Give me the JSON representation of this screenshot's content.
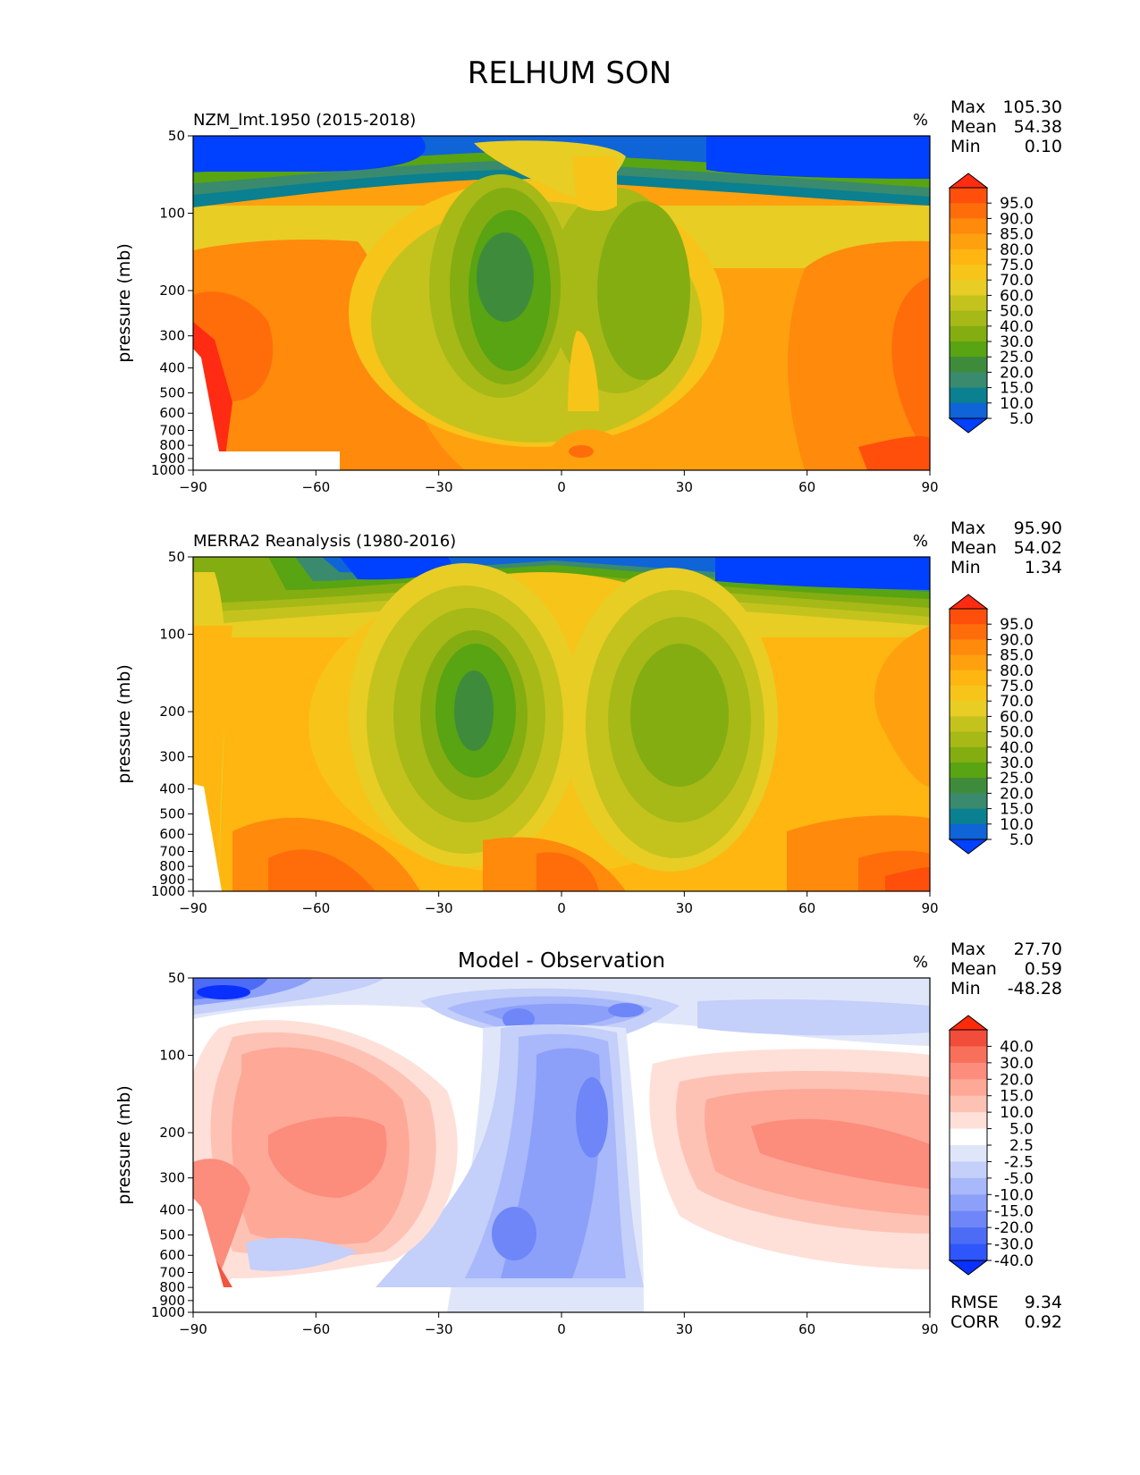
{
  "figure_title": "RELHUM SON",
  "chart_data": [
    {
      "type": "heatmap",
      "title": "NZM_lmt.1950 (2015-2018)",
      "title_position": "left",
      "units": "%",
      "ylabel": "pressure (mb)",
      "xlim": [
        -90,
        90
      ],
      "ylim": [
        1000,
        50
      ],
      "x_ticks": [
        "−90",
        "−60",
        "−30",
        "0",
        "30",
        "60",
        "90"
      ],
      "y_ticks": [
        "50",
        "100",
        "200",
        "300",
        "400",
        "500",
        "600",
        "700",
        "800",
        "900",
        "1000"
      ],
      "stats": [
        {
          "label": "Max",
          "value": "105.30"
        },
        {
          "label": "Mean",
          "value": "54.38"
        },
        {
          "label": "Min",
          "value": "0.10"
        }
      ],
      "colorbar": {
        "labels": [
          "95.0",
          "90.0",
          "85.0",
          "80.0",
          "75.0",
          "70.0",
          "60.0",
          "50.0",
          "40.0",
          "30.0",
          "25.0",
          "20.0",
          "15.0",
          "10.0",
          "5.0"
        ],
        "colors": [
          "#ff2b12",
          "#ff4f0b",
          "#ff6d0b",
          "#ff8a0c",
          "#ffa10e",
          "#ffb611",
          "#f7c419",
          "#e8cd24",
          "#c4c31e",
          "#a6b917",
          "#84ad11",
          "#58a412",
          "#3e8c3b",
          "#3a8a6e",
          "#0a8090",
          "#0f64d8",
          "#0040ff"
        ]
      },
      "footer": []
    },
    {
      "type": "heatmap",
      "title": "MERRA2 Reanalysis (1980-2016)",
      "title_position": "left",
      "units": "%",
      "ylabel": "pressure (mb)",
      "xlim": [
        -90,
        90
      ],
      "ylim": [
        1000,
        50
      ],
      "x_ticks": [
        "−90",
        "−60",
        "−30",
        "0",
        "30",
        "60",
        "90"
      ],
      "y_ticks": [
        "50",
        "100",
        "200",
        "300",
        "400",
        "500",
        "600",
        "700",
        "800",
        "900",
        "1000"
      ],
      "stats": [
        {
          "label": "Max",
          "value": "95.90"
        },
        {
          "label": "Mean",
          "value": "54.02"
        },
        {
          "label": "Min",
          "value": "1.34"
        }
      ],
      "colorbar": {
        "labels": [
          "95.0",
          "90.0",
          "85.0",
          "80.0",
          "75.0",
          "70.0",
          "60.0",
          "50.0",
          "40.0",
          "30.0",
          "25.0",
          "20.0",
          "15.0",
          "10.0",
          "5.0"
        ],
        "colors": [
          "#ff2b12",
          "#ff4f0b",
          "#ff6d0b",
          "#ff8a0c",
          "#ffa10e",
          "#ffb611",
          "#f7c419",
          "#e8cd24",
          "#c4c31e",
          "#a6b917",
          "#84ad11",
          "#58a412",
          "#3e8c3b",
          "#3a8a6e",
          "#0a8090",
          "#0f64d8",
          "#0040ff"
        ]
      },
      "footer": []
    },
    {
      "type": "heatmap",
      "title": "Model - Observation",
      "title_position": "center",
      "units": "%",
      "ylabel": "pressure (mb)",
      "xlim": [
        -90,
        90
      ],
      "ylim": [
        1000,
        50
      ],
      "x_ticks": [
        "−90",
        "−60",
        "−30",
        "0",
        "30",
        "60",
        "90"
      ],
      "y_ticks": [
        "50",
        "100",
        "200",
        "300",
        "400",
        "500",
        "600",
        "700",
        "800",
        "900",
        "1000"
      ],
      "stats": [
        {
          "label": "Max",
          "value": "27.70"
        },
        {
          "label": "Mean",
          "value": "0.59"
        },
        {
          "label": "Min",
          "value": "-48.28"
        }
      ],
      "colorbar": {
        "labels": [
          "40.0",
          "30.0",
          "20.0",
          "15.0",
          "10.0",
          "5.0",
          "2.5",
          "-2.5",
          "-5.0",
          "-10.0",
          "-15.0",
          "-20.0",
          "-30.0",
          "-40.0"
        ],
        "colors": [
          "#ff2a0a",
          "#f24c3a",
          "#f8705a",
          "#fc8c7c",
          "#fea898",
          "#fec2b4",
          "#fee0d8",
          "#ffffff",
          "#e0e6fa",
          "#c4cffa",
          "#a8b8fa",
          "#8ca0fa",
          "#6e86f8",
          "#4c6cf6",
          "#2e56fc",
          "#0a30ff"
        ]
      },
      "footer": [
        {
          "label": "RMSE",
          "value": "9.34"
        },
        {
          "label": "CORR",
          "value": "0.92"
        }
      ]
    }
  ]
}
